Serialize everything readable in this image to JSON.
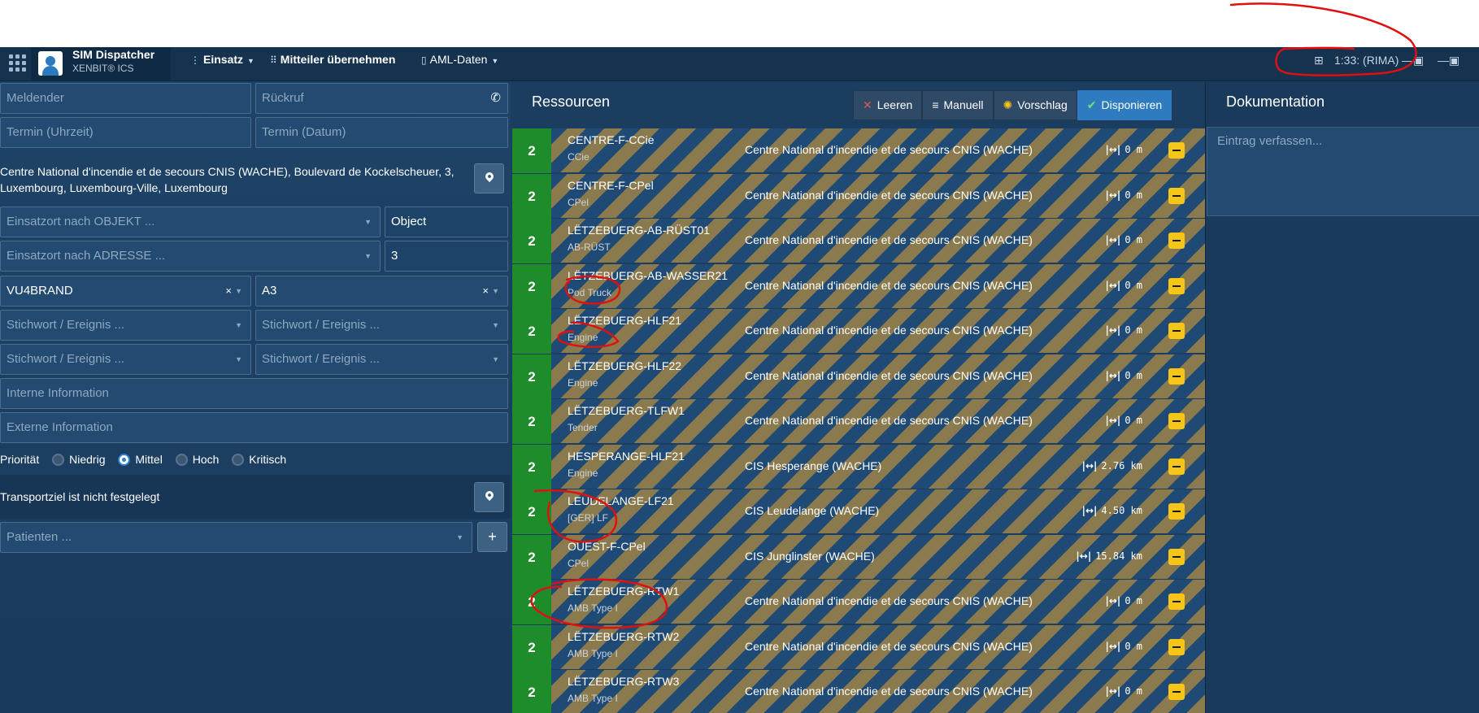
{
  "header": {
    "app_title": "SIM Dispatcher",
    "app_subtitle": "XENBIT® ICS",
    "menu": [
      {
        "label": "Einsatz",
        "icon": "vertical-dots-icon",
        "has_caret": true
      },
      {
        "label": "Mitteiler übernehmen",
        "icon": "grid-icon",
        "has_caret": false
      },
      {
        "label": "AML-Daten",
        "icon": "phone-device-icon",
        "has_caret": true
      }
    ],
    "clock_text": "1:33: (RIMA)"
  },
  "form": {
    "meldender_placeholder": "Meldender",
    "rueckruf_placeholder": "Rückruf",
    "termin_uhrzeit_placeholder": "Termin (Uhrzeit)",
    "termin_datum_placeholder": "Termin (Datum)",
    "address_line1": "Centre National d'incendie et de secours CNIS (WACHE), Boulevard de Kockelscheuer, 3,",
    "address_line2": "Luxembourg, Luxembourg-Ville, Luxembourg",
    "objekt_placeholder": "Einsatzort nach OBJEKT ...",
    "object_value": "Object",
    "adresse_placeholder": "Einsatzort nach ADRESSE ...",
    "adresse_number": "3",
    "stichwort1_value": "VU4BRAND",
    "stichwort2_value": "A3",
    "stichwort_placeholder": "Stichwort / Ereignis ...",
    "interne_placeholder": "Interne Information",
    "externe_placeholder": "Externe Information",
    "priority_label": "Priorität",
    "priority_options": [
      "Niedrig",
      "Mittel",
      "Hoch",
      "Kritisch"
    ],
    "priority_selected": "Mittel",
    "transport_text": "Transportziel ist nicht festgelegt",
    "patienten_placeholder": "Patienten ...",
    "plus_label": "+"
  },
  "resources": {
    "title": "Ressourcen",
    "buttons": {
      "leeren": "Leeren",
      "manuell": "Manuell",
      "vorschlag": "Vorschlag",
      "disponieren": "Disponieren"
    },
    "rows": [
      {
        "status": "2",
        "name": "CENTRE-F-CCie",
        "type": "CCie",
        "station": "Centre National d'incendie et de secours CNIS (WACHE)",
        "distance": "0 m"
      },
      {
        "status": "2",
        "name": "CENTRE-F-CPel",
        "type": "CPel",
        "station": "Centre National d'incendie et de secours CNIS (WACHE)",
        "distance": "0 m"
      },
      {
        "status": "2",
        "name": "LËTZEBUERG-AB-RÜST01",
        "type": "AB-RÜST",
        "station": "Centre National d'incendie et de secours CNIS (WACHE)",
        "distance": "0 m"
      },
      {
        "status": "2",
        "name": "LËTZEBUERG-AB-WASSER21",
        "type": "Pod Truck",
        "station": "Centre National d'incendie et de secours CNIS (WACHE)",
        "distance": "0 m"
      },
      {
        "status": "2",
        "name": "LËTZEBUERG-HLF21",
        "type": "Engine",
        "station": "Centre National d'incendie et de secours CNIS (WACHE)",
        "distance": "0 m"
      },
      {
        "status": "2",
        "name": "LËTZEBUERG-HLF22",
        "type": "Engine",
        "station": "Centre National d'incendie et de secours CNIS (WACHE)",
        "distance": "0 m"
      },
      {
        "status": "2",
        "name": "LËTZEBUERG-TLFW1",
        "type": "Tender",
        "station": "Centre National d'incendie et de secours CNIS (WACHE)",
        "distance": "0 m"
      },
      {
        "status": "2",
        "name": "HESPERANGE-HLF21",
        "type": "Engine",
        "station": "CIS Hesperange (WACHE)",
        "distance": "2.76 km"
      },
      {
        "status": "2",
        "name": "LEUDELANGE-LF21",
        "type": "[GER] LF",
        "station": "CIS Leudelange (WACHE)",
        "distance": "4.50 km"
      },
      {
        "status": "2",
        "name": "OUEST-F-CPel",
        "type": "CPel",
        "station": "CIS Junglinster (WACHE)",
        "distance": "15.84 km"
      },
      {
        "status": "2",
        "name": "LËTZEBUERG-RTW1",
        "type": "AMB Type I",
        "station": "Centre National d'incendie et de secours CNIS (WACHE)",
        "distance": "0 m"
      },
      {
        "status": "2",
        "name": "LËTZEBUERG-RTW2",
        "type": "AMB Type I",
        "station": "Centre National d'incendie et de secours CNIS (WACHE)",
        "distance": "0 m"
      },
      {
        "status": "2",
        "name": "LËTZEBUERG-RTW3",
        "type": "AMB Type I",
        "station": "Centre National d'incendie et de secours CNIS (WACHE)",
        "distance": "0 m"
      }
    ]
  },
  "documentation": {
    "title": "Dokumentation",
    "entry_placeholder": "Eintrag verfassen..."
  },
  "colors": {
    "status_green": "#1e8c2a",
    "stripe_blue": "#1e4a75",
    "stripe_tan": "#8a7a4e",
    "primary_blue": "#2e7bbf",
    "minus_yellow": "#f5c518",
    "annotation_red": "#e01010"
  }
}
